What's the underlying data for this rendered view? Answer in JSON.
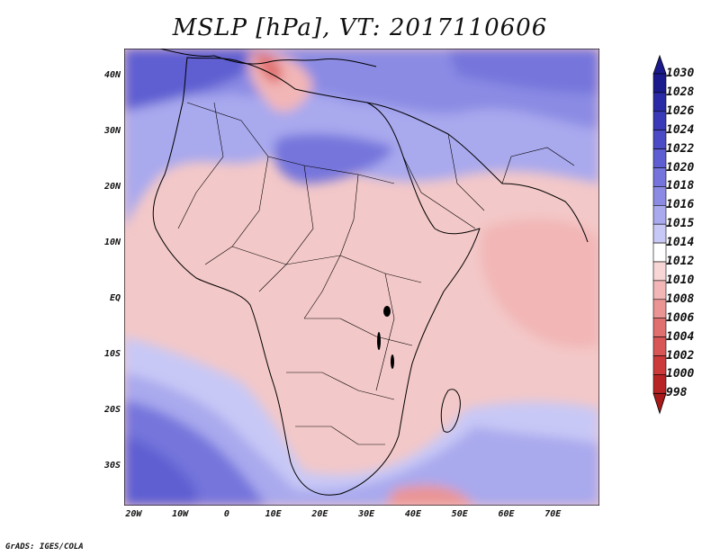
{
  "title": "MSLP [hPa], VT: 2017110606",
  "credit": "GrADS: IGES/COLA",
  "y_axis": {
    "labels": [
      "40N",
      "30N",
      "20N",
      "10N",
      "EQ",
      "10S",
      "20S",
      "30S"
    ],
    "values": [
      40,
      30,
      20,
      10,
      0,
      -10,
      -20,
      -30
    ],
    "range": [
      -37,
      45
    ]
  },
  "x_axis": {
    "labels": [
      "20W",
      "10W",
      "0",
      "10E",
      "20E",
      "30E",
      "40E",
      "50E",
      "60E",
      "70E"
    ],
    "values": [
      -20,
      -10,
      0,
      10,
      20,
      30,
      40,
      50,
      60,
      70
    ],
    "range": [
      -22,
      80
    ]
  },
  "colorbar": {
    "levels": [
      "1030",
      "1028",
      "1026",
      "1024",
      "1022",
      "1020",
      "1018",
      "1016",
      "1015",
      "1014",
      "1012",
      "1010",
      "1008",
      "1006",
      "1004",
      "1002",
      "1000",
      "998"
    ],
    "colors": [
      "#1a1a8c",
      "#2a2aa6",
      "#3a3ab8",
      "#4b4bc6",
      "#5e5ed2",
      "#7474dc",
      "#8b8be4",
      "#a9a9ee",
      "#c8c8f6",
      "#ffffff",
      "#f8d6d6",
      "#f2b6b6",
      "#ea9494",
      "#e07070",
      "#d85656",
      "#cc3a3a",
      "#b82424"
    ],
    "top_arrow_color": "#1a1a8c",
    "bottom_arrow_color": "#a81a1a"
  },
  "map_colors": {
    "background": "#f3c8c8",
    "land_outline": "#000000"
  }
}
